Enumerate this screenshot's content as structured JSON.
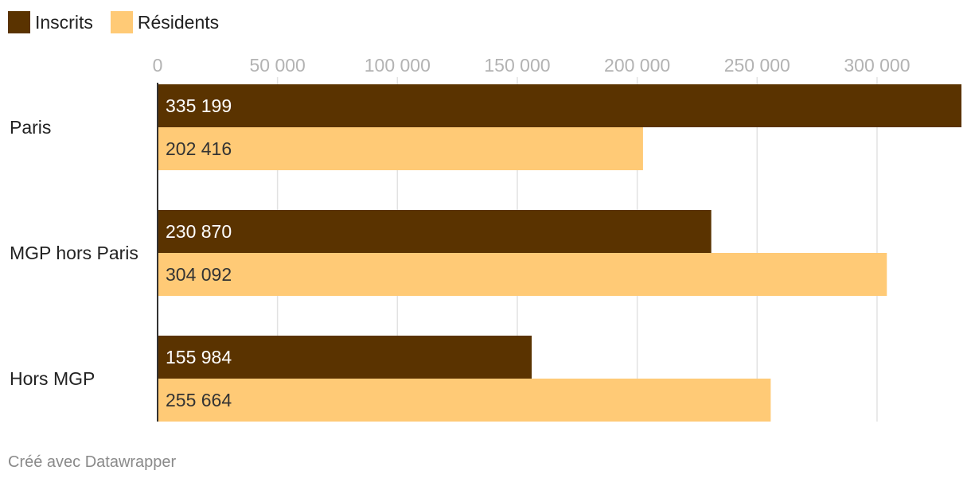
{
  "chart_data": {
    "type": "bar",
    "orientation": "horizontal",
    "categories": [
      "Paris",
      "MGP hors Paris",
      "Hors MGP"
    ],
    "series": [
      {
        "name": "Inscrits",
        "color": "#5a3300",
        "values": [
          335199,
          230870,
          155984
        ],
        "labels": [
          "335 199",
          "230 870",
          "155 984"
        ]
      },
      {
        "name": "Résidents",
        "color": "#ffca76",
        "values": [
          202416,
          304092,
          255664
        ],
        "labels": [
          "202 416",
          "304 092",
          "255 664"
        ]
      }
    ],
    "xlim": [
      0,
      335199
    ],
    "xticks": [
      0,
      50000,
      100000,
      150000,
      200000,
      250000,
      300000
    ],
    "xtick_labels": [
      "0",
      "50 000",
      "100 000",
      "150 000",
      "200 000",
      "250 000",
      "300 000"
    ],
    "axis_position": "top",
    "grid": true,
    "legend": "top-left",
    "xlabel": "",
    "ylabel": ""
  },
  "footer": "Créé avec Datawrapper"
}
